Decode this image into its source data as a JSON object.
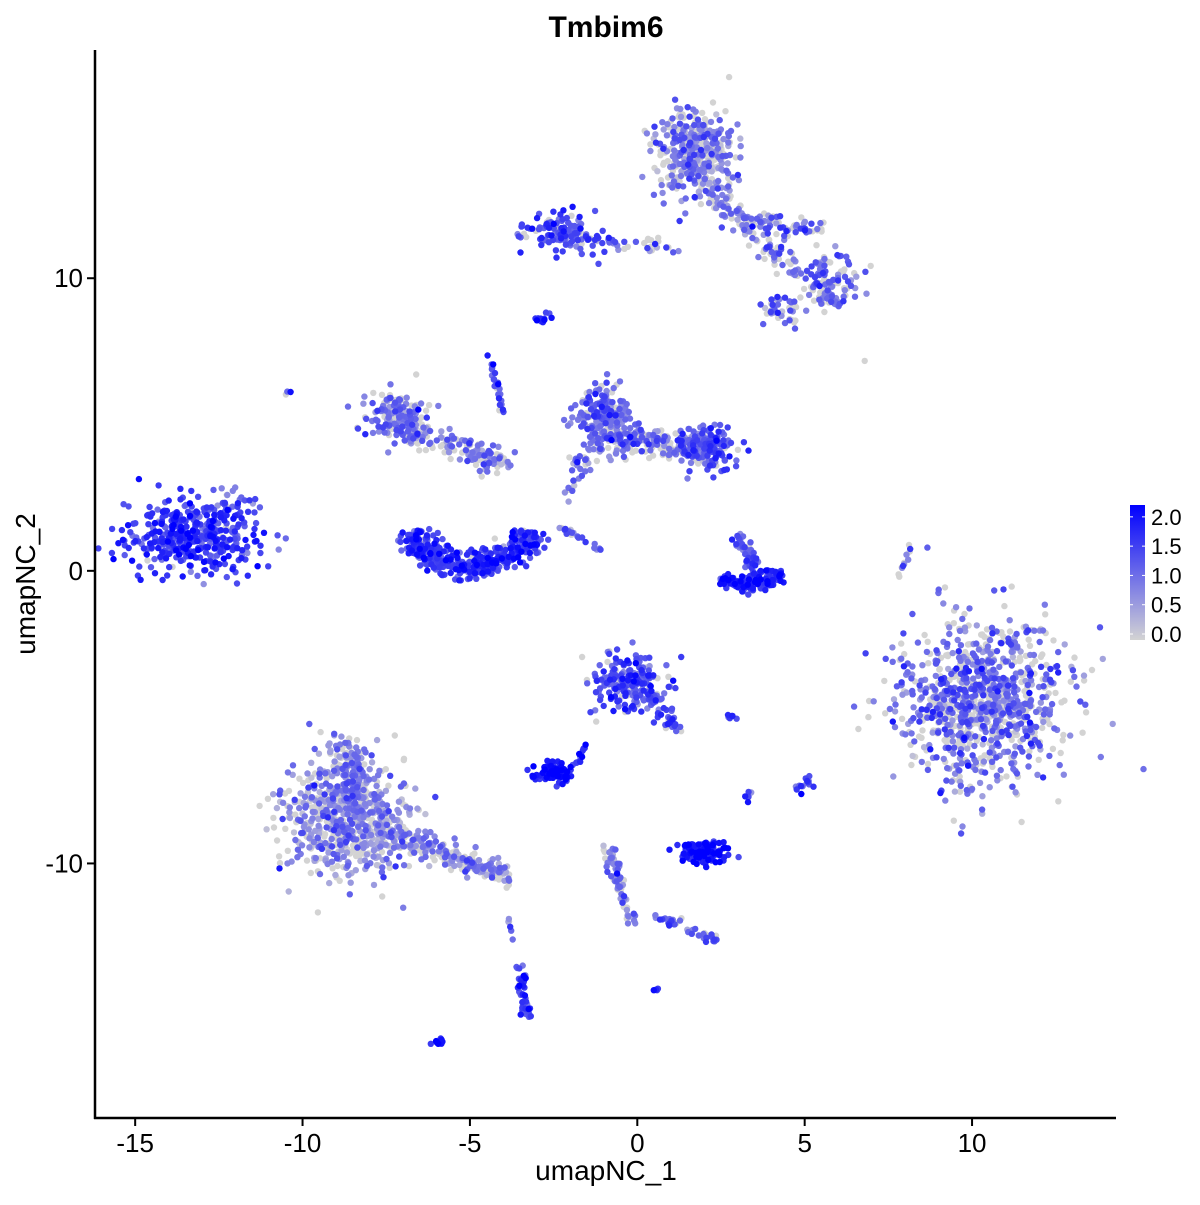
{
  "chart_data": {
    "type": "scatter",
    "title": "Tmbim6",
    "xlabel": "umapNC_1",
    "ylabel": "umapNC_2",
    "xlim": [
      -16.2,
      14.3
    ],
    "ylim": [
      -18.7,
      17.8
    ],
    "x_ticks": [
      -15,
      -10,
      -5,
      0,
      5,
      10
    ],
    "x_tick_labels": [
      "-15",
      "-10",
      "-5",
      "0",
      "5",
      "10"
    ],
    "y_ticks": [
      -10,
      0,
      10
    ],
    "y_tick_labels": [
      "-10",
      "0",
      "10"
    ],
    "grid": false,
    "color_scale": {
      "low": "#D3D3D3",
      "high": "#0000FF",
      "range": [
        0,
        2.1
      ]
    },
    "legend": {
      "placement": "right",
      "ticks": [
        0,
        0.5,
        1,
        1.5,
        2
      ],
      "tick_labels": [
        "0.0",
        "0.5",
        "1.0",
        "1.5",
        "2.0"
      ]
    },
    "clusters_approx": [
      {
        "type": "blob",
        "x": -13.35,
        "y": 1.2,
        "sx": 0.95,
        "sy": 0.65,
        "n": 420,
        "expr": 1.5,
        "zero_frac": 0.05
      },
      {
        "type": "blob",
        "x": 1.75,
        "y": 14.3,
        "sx": 0.6,
        "sy": 0.75,
        "n": 380,
        "expr": 0.9,
        "zero_frac": 0.35
      },
      {
        "type": "blob",
        "x": -2.3,
        "y": 11.5,
        "sx": 0.55,
        "sy": 0.35,
        "n": 120,
        "expr": 1.3,
        "zero_frac": 0.1
      },
      {
        "type": "blob",
        "x": 5.6,
        "y": 9.9,
        "sx": 0.5,
        "sy": 0.5,
        "n": 120,
        "expr": 1.1,
        "zero_frac": 0.25
      },
      {
        "type": "blob",
        "x": 4.3,
        "y": 8.9,
        "sx": 0.3,
        "sy": 0.3,
        "n": 40,
        "expr": 1.0,
        "zero_frac": 0.3
      },
      {
        "type": "segment",
        "x1": 2.0,
        "y1": 13.2,
        "x2": 4.6,
        "y2": 10.4,
        "w": 0.35,
        "n": 110,
        "expr": 1.0,
        "zero_frac": 0.35
      },
      {
        "type": "segment",
        "x1": 3.2,
        "y1": 12.0,
        "x2": 5.5,
        "y2": 11.6,
        "w": 0.3,
        "n": 60,
        "expr": 1.1,
        "zero_frac": 0.3
      },
      {
        "type": "segment",
        "x1": -1.5,
        "y1": 11.3,
        "x2": 1.2,
        "y2": 11.1,
        "w": 0.2,
        "n": 35,
        "expr": 0.9,
        "zero_frac": 0.4
      },
      {
        "type": "blob",
        "x": -7.2,
        "y": 5.4,
        "sx": 0.45,
        "sy": 0.45,
        "n": 140,
        "expr": 1.0,
        "zero_frac": 0.3
      },
      {
        "type": "segment",
        "x1": -7.0,
        "y1": 4.9,
        "x2": -4.0,
        "y2": 3.7,
        "w": 0.4,
        "n": 150,
        "expr": 0.9,
        "zero_frac": 0.35
      },
      {
        "type": "segment",
        "x1": -4.4,
        "y1": 7.4,
        "x2": -4.0,
        "y2": 5.3,
        "w": 0.08,
        "n": 25,
        "expr": 1.3,
        "zero_frac": 0.1
      },
      {
        "type": "arc",
        "x": -5.0,
        "y": 1.6,
        "r": 1.8,
        "a1": 190,
        "a2": 350,
        "w": 0.45,
        "n": 420,
        "expr": 1.45,
        "zero_frac": 0.05
      },
      {
        "type": "blob",
        "x": -1.1,
        "y": 5.4,
        "sx": 0.45,
        "sy": 0.5,
        "n": 180,
        "expr": 1.1,
        "zero_frac": 0.2
      },
      {
        "type": "segment",
        "x1": -1.0,
        "y1": 4.6,
        "x2": 2.4,
        "y2": 4.1,
        "w": 0.4,
        "n": 220,
        "expr": 1.0,
        "zero_frac": 0.3
      },
      {
        "type": "blob",
        "x": 2.1,
        "y": 4.2,
        "sx": 0.45,
        "sy": 0.4,
        "n": 130,
        "expr": 1.3,
        "zero_frac": 0.1
      },
      {
        "type": "segment",
        "x1": -2.1,
        "y1": 2.6,
        "x2": -1.2,
        "y2": 4.8,
        "w": 0.25,
        "n": 40,
        "expr": 1.0,
        "zero_frac": 0.3
      },
      {
        "type": "segment",
        "x1": -2.3,
        "y1": 1.5,
        "x2": -1.1,
        "y2": 0.7,
        "w": 0.08,
        "n": 20,
        "expr": 1.2,
        "zero_frac": 0.1
      },
      {
        "type": "arc",
        "x": 3.3,
        "y": 0.3,
        "r": 1.0,
        "a1": 220,
        "a2": 340,
        "w": 0.25,
        "n": 150,
        "expr": 1.6,
        "zero_frac": 0.05
      },
      {
        "type": "segment",
        "x1": 3.0,
        "y1": 1.2,
        "x2": 3.7,
        "y2": -0.2,
        "w": 0.2,
        "n": 50,
        "expr": 1.3,
        "zero_frac": 0.1
      },
      {
        "type": "blob",
        "x": 10.4,
        "y": -4.5,
        "sx": 1.25,
        "sy": 1.4,
        "n": 950,
        "expr": 1.0,
        "zero_frac": 0.35
      },
      {
        "type": "blob",
        "x": -8.7,
        "y": -8.4,
        "sx": 0.9,
        "sy": 1.0,
        "n": 650,
        "expr": 0.75,
        "zero_frac": 0.35
      },
      {
        "type": "segment",
        "x1": -8.8,
        "y1": -6.0,
        "x2": -8.3,
        "y2": -8.0,
        "w": 0.4,
        "n": 120,
        "expr": 0.9,
        "zero_frac": 0.3
      },
      {
        "type": "segment",
        "x1": -7.5,
        "y1": -8.9,
        "x2": -3.9,
        "y2": -10.4,
        "w": 0.35,
        "n": 200,
        "expr": 0.9,
        "zero_frac": 0.35
      },
      {
        "type": "blob",
        "x": -0.3,
        "y": -3.8,
        "sx": 0.5,
        "sy": 0.5,
        "n": 200,
        "expr": 1.3,
        "zero_frac": 0.15
      },
      {
        "type": "segment",
        "x1": 0.2,
        "y1": -4.0,
        "x2": 1.2,
        "y2": -5.5,
        "w": 0.25,
        "n": 50,
        "expr": 1.2,
        "zero_frac": 0.15
      },
      {
        "type": "blob",
        "x": -2.5,
        "y": -6.9,
        "sx": 0.3,
        "sy": 0.18,
        "n": 90,
        "expr": 1.85,
        "zero_frac": 0.0
      },
      {
        "type": "segment",
        "x1": -1.8,
        "y1": -6.6,
        "x2": -1.5,
        "y2": -5.8,
        "w": 0.1,
        "n": 12,
        "expr": 1.5,
        "zero_frac": 0.0
      },
      {
        "type": "blob",
        "x": 2.0,
        "y": -9.6,
        "sx": 0.35,
        "sy": 0.18,
        "n": 120,
        "expr": 1.8,
        "zero_frac": 0.0
      },
      {
        "type": "segment",
        "x1": -0.9,
        "y1": -9.3,
        "x2": -0.2,
        "y2": -12.0,
        "w": 0.15,
        "n": 70,
        "expr": 0.9,
        "zero_frac": 0.3
      },
      {
        "type": "segment",
        "x1": 0.5,
        "y1": -11.8,
        "x2": 2.4,
        "y2": -12.6,
        "w": 0.15,
        "n": 40,
        "expr": 1.1,
        "zero_frac": 0.2
      },
      {
        "type": "segment",
        "x1": -3.5,
        "y1": -13.5,
        "x2": -3.3,
        "y2": -15.3,
        "w": 0.15,
        "n": 50,
        "expr": 1.5,
        "zero_frac": 0.05
      },
      {
        "type": "segment",
        "x1": -3.9,
        "y1": -11.7,
        "x2": -3.7,
        "y2": -12.6,
        "w": 0.05,
        "n": 6,
        "expr": 1.0,
        "zero_frac": 0.3
      },
      {
        "type": "blob",
        "x": -2.8,
        "y": 8.6,
        "sx": 0.12,
        "sy": 0.1,
        "n": 12,
        "expr": 1.7,
        "zero_frac": 0.0
      },
      {
        "type": "blob",
        "x": -5.9,
        "y": -16.1,
        "sx": 0.12,
        "sy": 0.06,
        "n": 10,
        "expr": 1.9,
        "zero_frac": 0.0
      },
      {
        "type": "blob",
        "x": 5.0,
        "y": -7.3,
        "sx": 0.12,
        "sy": 0.15,
        "n": 14,
        "expr": 1.5,
        "zero_frac": 0.0
      },
      {
        "type": "blob",
        "x": 3.3,
        "y": -7.7,
        "sx": 0.08,
        "sy": 0.1,
        "n": 6,
        "expr": 1.5,
        "zero_frac": 0.0
      },
      {
        "type": "blob",
        "x": 2.8,
        "y": -5.0,
        "sx": 0.1,
        "sy": 0.05,
        "n": 6,
        "expr": 1.5,
        "zero_frac": 0.0
      },
      {
        "type": "blob",
        "x": 0.6,
        "y": -14.3,
        "sx": 0.06,
        "sy": 0.06,
        "n": 4,
        "expr": 1.5,
        "zero_frac": 0.0
      },
      {
        "type": "segment",
        "x1": 7.8,
        "y1": -0.2,
        "x2": 8.2,
        "y2": 0.9,
        "w": 0.05,
        "n": 12,
        "expr": 1.0,
        "zero_frac": 0.3
      },
      {
        "type": "blob",
        "x": -10.5,
        "y": 6.1,
        "sx": 0.05,
        "sy": 0.05,
        "n": 3,
        "expr": 1.2,
        "zero_frac": 0.3
      },
      {
        "type": "blob",
        "x": 6.8,
        "y": 7.1,
        "sx": 0.03,
        "sy": 0.03,
        "n": 1,
        "expr": 0.0,
        "zero_frac": 1.0
      },
      {
        "type": "blob",
        "x": -12.0,
        "y": 2.3,
        "sx": 0.3,
        "sy": 0.3,
        "n": 25,
        "expr": 1.2,
        "zero_frac": 0.1
      }
    ]
  }
}
